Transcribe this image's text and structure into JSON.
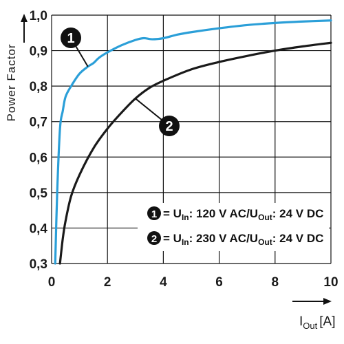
{
  "chart_data": {
    "type": "line",
    "ylabel": "Power Factor",
    "xlabel": "I",
    "xlabel_sub": "Out",
    "xlabel_unit": "[A]",
    "xlim": [
      0,
      10
    ],
    "ylim": [
      0.3,
      1.0
    ],
    "x_ticks": [
      "0",
      "2",
      "4",
      "6",
      "8",
      "10"
    ],
    "y_ticks": [
      "0,3",
      "0,4",
      "0,5",
      "0,6",
      "0,7",
      "0,8",
      "0,9",
      "1,0"
    ],
    "grid": true,
    "legend_placement": "bottom-right",
    "series": [
      {
        "marker": "1",
        "color": "#2b9fd8",
        "legend": {
          "prefix": "= U",
          "sub1": "In",
          "mid": ": 120 V AC/U",
          "sub2": "Out",
          "suffix": ": 24 V DC"
        },
        "x": [
          0.13,
          0.2,
          0.3,
          0.4,
          0.5,
          0.7,
          1.0,
          1.3,
          1.5,
          1.7,
          2.0,
          2.5,
          3.0,
          3.3,
          3.6,
          4.0,
          4.5,
          5.0,
          6.0,
          7.0,
          8.0,
          9.0,
          10.0
        ],
        "y": [
          0.3,
          0.5,
          0.68,
          0.73,
          0.77,
          0.8,
          0.835,
          0.855,
          0.865,
          0.88,
          0.895,
          0.915,
          0.93,
          0.935,
          0.932,
          0.935,
          0.945,
          0.952,
          0.963,
          0.972,
          0.978,
          0.982,
          0.985
        ]
      },
      {
        "marker": "2",
        "color": "#1a1a1a",
        "legend": {
          "prefix": "= U",
          "sub1": "In",
          "mid": ": 230 V AC/U",
          "sub2": "Out",
          "suffix": ": 24 V DC"
        },
        "x": [
          0.3,
          0.4,
          0.5,
          0.7,
          1.0,
          1.5,
          2.0,
          2.5,
          3.0,
          3.5,
          4.0,
          5.0,
          6.0,
          7.0,
          8.0,
          9.0,
          10.0
        ],
        "y": [
          0.3,
          0.37,
          0.42,
          0.49,
          0.55,
          0.625,
          0.68,
          0.725,
          0.765,
          0.795,
          0.815,
          0.847,
          0.868,
          0.885,
          0.9,
          0.912,
          0.922
        ]
      }
    ]
  }
}
